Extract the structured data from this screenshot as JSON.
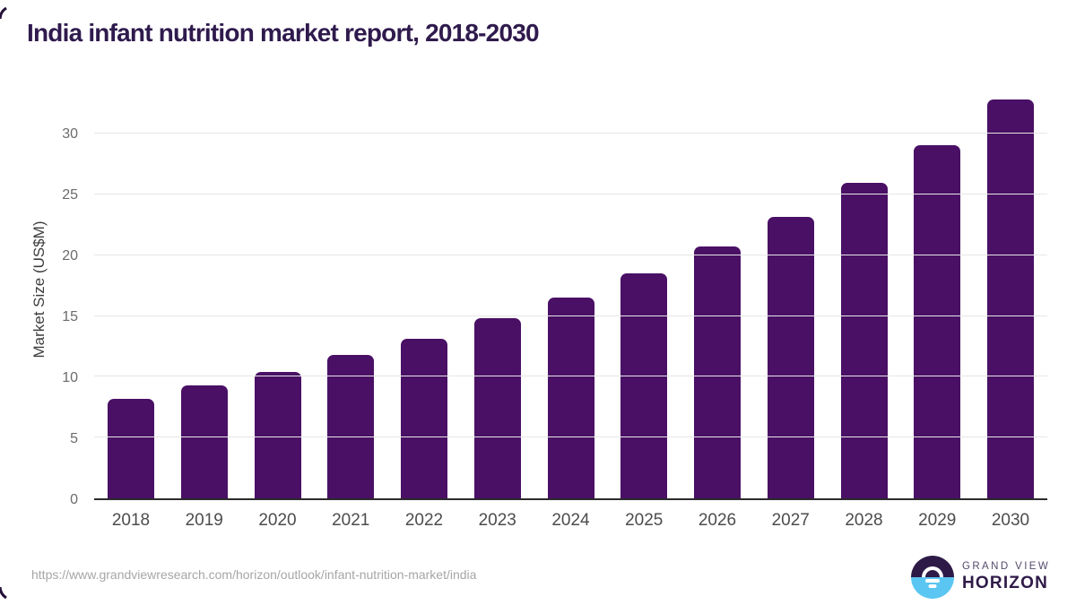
{
  "header": {
    "title": "India infant nutrition market report, 2018-2030"
  },
  "chart_data": {
    "type": "bar",
    "title": "India infant nutrition market report, 2018-2030",
    "categories": [
      "2018",
      "2019",
      "2020",
      "2021",
      "2022",
      "2023",
      "2024",
      "2025",
      "2026",
      "2027",
      "2028",
      "2029",
      "2030"
    ],
    "values": [
      8.2,
      9.3,
      10.4,
      11.8,
      13.1,
      14.8,
      16.5,
      18.5,
      20.7,
      23.2,
      26.0,
      29.1,
      32.8
    ],
    "xlabel": "",
    "ylabel": "Market Size (US$M)",
    "ylim": [
      0,
      33.2
    ],
    "yticks": [
      0,
      5,
      10,
      15,
      20,
      25,
      30
    ],
    "grid": "horizontal gridlines on",
    "legend": "none",
    "bar_color": "#4a1065"
  },
  "footer": {
    "source_url": "https://www.grandviewresearch.com/horizon/outlook/infant-nutrition-market/india",
    "logo": {
      "line1": "GRAND VIEW",
      "line2": "HORIZON"
    }
  },
  "colors": {
    "title_text": "#2f1a4d",
    "bar": "#4a1065",
    "gridline": "#e6e6e6",
    "axis_line": "#2b2b2b",
    "y_tick_text": "#6b6b6b",
    "x_tick_text": "#4c4c4c",
    "url_text": "#a6a6a6",
    "logo_purple": "#2e1a47",
    "logo_blue": "#5bc6f2"
  }
}
